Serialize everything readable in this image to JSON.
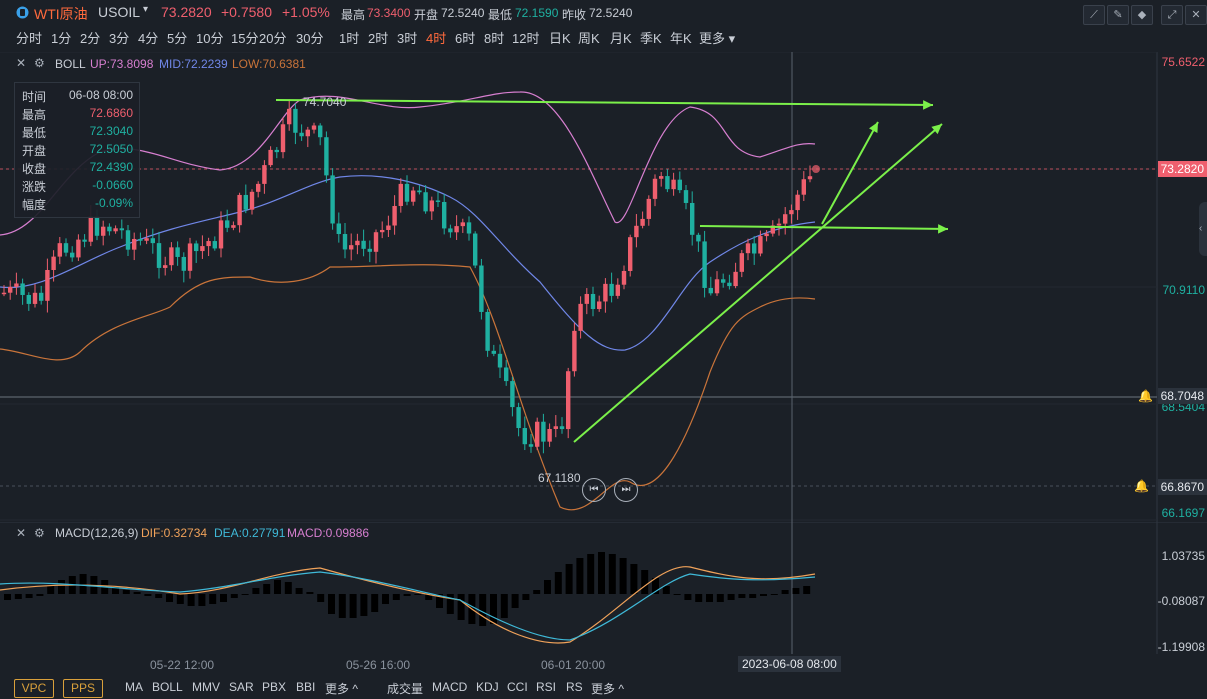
{
  "header": {
    "symbol_name": "WTI原油",
    "symbol_code": "USOIL",
    "last": "73.2820",
    "change": "+0.7580",
    "change_pct": "+1.05%",
    "high_label": "最高",
    "high": "73.3400",
    "open_label": "开盘",
    "open": "72.5240",
    "low_label": "最低",
    "low": "72.1590",
    "prev_label": "昨收",
    "prev": "72.5240"
  },
  "timeframes": [
    "分时",
    "1分",
    "2分",
    "3分",
    "4分",
    "5分",
    "10分",
    "15分",
    "20分",
    "30分",
    "1时",
    "2时",
    "3时",
    "4时",
    "6时",
    "8时",
    "12时",
    "日K",
    "周K",
    "月K",
    "季K",
    "年K",
    "更多"
  ],
  "active_timeframe": "4时",
  "boll": {
    "name": "BOLL",
    "up": "UP:73.8098",
    "mid": "MID:72.2239",
    "low": "LOW:70.6381"
  },
  "tooltip": {
    "time_label": "时间",
    "time": "06-08 08:00",
    "high_label": "最高",
    "high": "72.6860",
    "low_label": "最低",
    "low": "72.3040",
    "open_label": "开盘",
    "open": "72.5050",
    "close_label": "收盘",
    "close": "72.4390",
    "chg_label": "涨跌",
    "chg": "-0.0660",
    "pct_label": "幅度",
    "pct": "-0.09%"
  },
  "price_axis": {
    "top": "75.6522",
    "current": "73.2820",
    "mid": "70.9110",
    "crosshair": "68.7048",
    "under_crosshair": "68.5404",
    "alert": "66.8670",
    "bottom": "66.1697"
  },
  "annotations": {
    "high_mark": "74.7040",
    "low_mark": "67.1180"
  },
  "macd": {
    "name": "MACD(12,26,9)",
    "dif": "DIF:0.32734",
    "dea": "DEA:0.27791",
    "macd": "MACD:0.09886"
  },
  "macd_axis": {
    "top": "1.03735",
    "mid": "-0.08087",
    "bottom": "-1.19908"
  },
  "x_axis": {
    "l1": "05-22 12:00",
    "l2": "05-26 16:00",
    "l3": "06-01 20:00",
    "crosshair": "2023-06-08 08:00"
  },
  "bottom_bar": {
    "vpc": "VPC",
    "pps": "PPS",
    "indicators_main": [
      "MA",
      "BOLL",
      "MMV",
      "SAR",
      "PBX",
      "BBI",
      "更多 ^"
    ],
    "indicators_sub": [
      "成交量",
      "MACD",
      "KDJ",
      "CCI",
      "RSI",
      "RS",
      "更多 ^"
    ]
  },
  "colors": {
    "up": "#ef5f6e",
    "down": "#1fb0a1",
    "accent": "#ff6a3d",
    "trend": "#7bf04a",
    "upper_band": "#d77fd0",
    "mid_band": "#7087e8",
    "lower_band": "#c9743a"
  },
  "icons": [
    "info-circle-icon",
    "dropdown-icon",
    "close-icon",
    "settings-icon",
    "bell-icon",
    "prev-icon",
    "next-icon",
    "collapse-icon"
  ]
}
